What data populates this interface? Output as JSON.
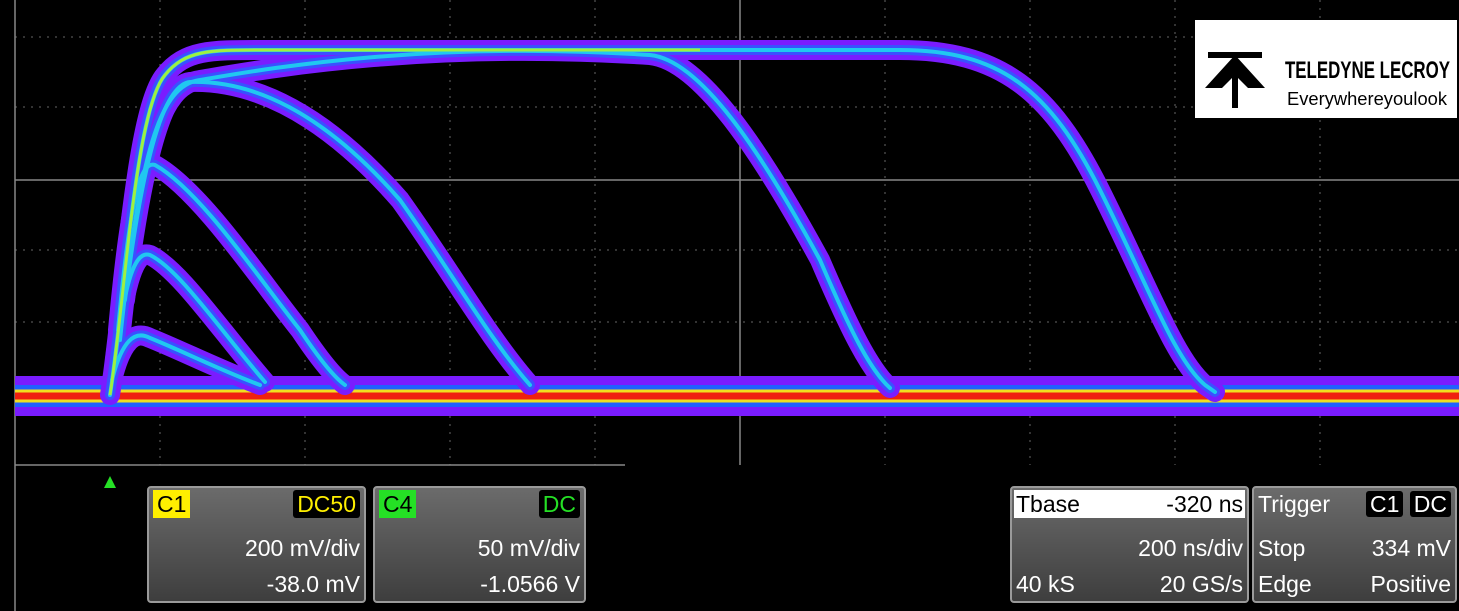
{
  "logo": {
    "brand": "TELEDYNE LECROY",
    "tagline": "Everywhereyoulook"
  },
  "channels": [
    {
      "name": "C1",
      "coupling": "DC50",
      "scale": "200 mV/div",
      "offset": "-38.0 mV"
    },
    {
      "name": "C4",
      "coupling": "DC",
      "scale": "50 mV/div",
      "offset": "-1.0566 V"
    }
  ],
  "timebase": {
    "label": "Tbase",
    "delay": "-320 ns",
    "scale": "200 ns/div",
    "samples": "40 kS",
    "rate": "20 GS/s"
  },
  "trigger": {
    "label": "Trigger",
    "source": "C1",
    "coupling": "DC",
    "mode": "Stop",
    "level": "334 mV",
    "type": "Edge",
    "slope": "Positive"
  }
}
